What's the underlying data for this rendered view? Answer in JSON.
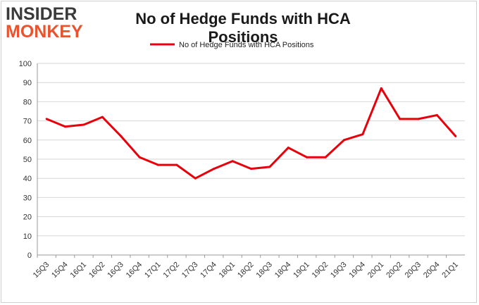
{
  "header": {
    "logo_line1": "INSIDER",
    "logo_line2": "MONKEY"
  },
  "chart_data": {
    "type": "line",
    "title": "No of Hedge Funds with HCA Positions",
    "xlabel": "",
    "ylabel": "",
    "ylim": [
      0,
      100
    ],
    "yticks": [
      0,
      10,
      20,
      30,
      40,
      50,
      60,
      70,
      80,
      90,
      100
    ],
    "grid": true,
    "legend_position": "top",
    "line_color": "#e8000b",
    "categories": [
      "15Q3",
      "15Q4",
      "16Q1",
      "16Q2",
      "16Q3",
      "16Q4",
      "17Q1",
      "17Q2",
      "17Q3",
      "17Q4",
      "18Q1",
      "18Q2",
      "18Q3",
      "18Q4",
      "19Q1",
      "19Q2",
      "19Q3",
      "19Q4",
      "20Q1",
      "20Q2",
      "20Q3",
      "20Q4",
      "21Q1"
    ],
    "series": [
      {
        "name": "No of Hedge Funds with HCA Positions",
        "values": [
          71,
          67,
          68,
          72,
          62,
          51,
          47,
          47,
          40,
          45,
          49,
          45,
          46,
          56,
          51,
          51,
          60,
          63,
          87,
          71,
          71,
          73,
          62
        ]
      }
    ]
  }
}
